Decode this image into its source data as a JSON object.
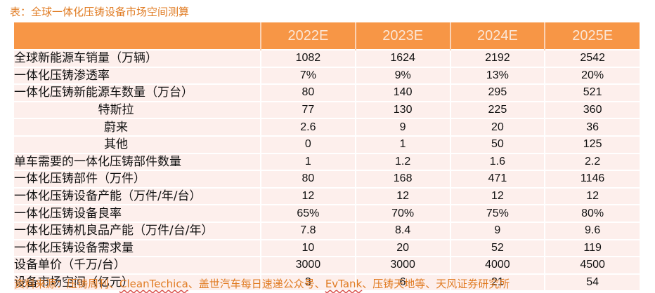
{
  "title": "表：全球一体化压铸设备市场空间测算",
  "header": {
    "corner": "",
    "years": [
      "2022E",
      "2023E",
      "2024E",
      "2025E"
    ]
  },
  "rows": [
    {
      "label": "全球新能源车销量（万辆）",
      "indent": false,
      "values": [
        "1082",
        "1624",
        "2192",
        "2542"
      ]
    },
    {
      "label": "一体化压铸渗透率",
      "indent": false,
      "values": [
        "7%",
        "9%",
        "13%",
        "20%"
      ]
    },
    {
      "label": "一体化压铸新能源车数量（万台）",
      "indent": false,
      "values": [
        "80",
        "140",
        "295",
        "521"
      ]
    },
    {
      "label": "特斯拉",
      "indent": true,
      "values": [
        "77",
        "130",
        "225",
        "360"
      ]
    },
    {
      "label": "蔚来",
      "indent": true,
      "values": [
        "2.6",
        "9",
        "20",
        "36"
      ]
    },
    {
      "label": "其他",
      "indent": true,
      "values": [
        "0",
        "1",
        "50",
        "125"
      ]
    },
    {
      "label": "单车需要的一体化压铸部件数量",
      "indent": false,
      "values": [
        "1",
        "1.2",
        "1.6",
        "2.2"
      ]
    },
    {
      "label": "一体化压铸部件（万件）",
      "indent": false,
      "values": [
        "80",
        "168",
        "471",
        "1146"
      ]
    },
    {
      "label": "一体化压铸设备产能（万件/年/台）",
      "indent": false,
      "values": [
        "12",
        "12",
        "12",
        "12"
      ]
    },
    {
      "label": "一体化压铸设备良率",
      "indent": false,
      "values": [
        "65%",
        "70%",
        "75%",
        "80%"
      ]
    },
    {
      "label": "一体化压铸机良品产能（万件/台/年）",
      "indent": false,
      "values": [
        "7.8",
        "8.4",
        "9",
        "9.6"
      ]
    },
    {
      "label": "一体化压铸设备需求量",
      "indent": false,
      "values": [
        "10",
        "20",
        "52",
        "119"
      ]
    },
    {
      "label": "设备单价（千万/台）",
      "indent": false,
      "values": [
        "3000",
        "3000",
        "4000",
        "4500"
      ]
    },
    {
      "label": "设备市场空间（亿元）",
      "indent": false,
      "values": [
        "3",
        "6",
        "21",
        "54"
      ]
    }
  ],
  "source": {
    "prefix": "资料来源：压铸周刊、",
    "link1": "CleanTechica",
    "middle": "、盖世汽车每日速递公众号、",
    "link2": "EvTank",
    "suffix": "、压铸天地等、天风证券研究所"
  },
  "colors": {
    "header_bg": "#f79646",
    "header_text": "#fbe6d6",
    "row_bg": "#fdefec",
    "title_text": "#e07b22"
  }
}
